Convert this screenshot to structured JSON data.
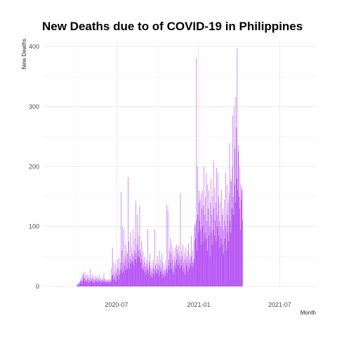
{
  "chart_data": {
    "type": "bar",
    "title": "New Deaths due to of COVID-19 in Philippines",
    "xlabel": "Month",
    "ylabel": "New Deaths",
    "x_start": "2020-02-01",
    "x_end": "2021-09-08",
    "xlim": [
      "2020-01-20",
      "2021-09-20"
    ],
    "ylim": [
      0,
      410
    ],
    "y_ticks": [
      0,
      100,
      200,
      300,
      400
    ],
    "x_ticks": [
      {
        "date": "2020-07-01",
        "label": "2020-07"
      },
      {
        "date": "2021-01-01",
        "label": "2021-01"
      },
      {
        "date": "2021-07-01",
        "label": "2021-07"
      }
    ],
    "bar_color": "#a020f0",
    "grid": true,
    "background": "#ffffff",
    "values_weekly_pattern": "daily",
    "values": [
      0,
      0,
      0,
      0,
      0,
      0,
      0,
      0,
      0,
      0,
      0,
      0,
      0,
      0,
      0,
      0,
      0,
      0,
      0,
      0,
      0,
      0,
      0,
      0,
      0,
      0,
      0,
      0,
      0,
      0,
      1,
      0,
      0,
      0,
      0,
      0,
      0,
      0,
      0,
      0,
      0,
      0,
      0,
      0,
      0,
      0,
      0,
      0,
      0,
      0,
      0,
      0,
      0,
      0,
      0,
      0,
      0,
      0,
      0,
      0,
      0,
      0,
      1,
      2,
      3,
      4,
      5,
      3,
      8,
      6,
      9,
      12,
      5,
      15,
      10,
      8,
      22,
      18,
      12,
      25,
      14,
      9,
      20,
      11,
      7,
      17,
      13,
      21,
      10,
      6,
      16,
      12,
      8,
      28,
      14,
      11,
      9,
      19,
      13,
      7,
      15,
      10,
      6,
      12,
      18,
      9,
      14,
      8,
      16,
      11,
      7,
      13,
      20,
      10,
      8,
      12,
      15,
      9,
      6,
      11,
      14,
      10,
      8,
      22,
      13,
      9,
      7,
      12,
      10,
      8,
      6,
      11,
      9,
      7,
      14,
      10,
      8,
      6,
      12,
      9,
      30,
      18,
      65,
      20,
      12,
      40,
      25,
      15,
      10,
      35,
      22,
      8,
      28,
      45,
      18,
      30,
      12,
      48,
      20,
      26,
      40,
      158,
      30,
      60,
      22,
      100,
      40,
      25,
      95,
      35,
      50,
      70,
      28,
      45,
      60,
      30,
      55,
      183,
      40,
      75,
      30,
      50,
      90,
      45,
      38,
      65,
      55,
      42,
      95,
      50,
      35,
      60,
      80,
      45,
      143,
      55,
      40,
      70,
      120,
      50,
      60,
      85,
      48,
      135,
      62,
      40,
      55,
      75,
      30,
      45,
      60,
      28,
      35,
      50,
      25,
      40,
      33,
      20,
      45,
      28,
      38,
      95,
      30,
      22,
      42,
      35,
      55,
      18,
      30,
      25,
      40,
      15,
      22,
      32,
      45,
      28,
      18,
      95,
      35,
      25,
      40,
      30,
      22,
      50,
      38,
      28,
      18,
      60,
      35,
      25,
      45,
      30,
      20,
      55,
      40,
      15,
      25,
      35,
      20,
      28,
      18,
      40,
      25,
      30,
      137,
      22,
      128,
      35,
      45,
      28,
      60,
      80,
      40,
      55,
      30,
      70,
      45,
      25,
      60,
      20,
      35,
      50,
      65,
      40,
      30,
      70,
      45,
      62,
      55,
      35,
      68,
      40,
      50,
      30,
      155,
      45,
      60,
      35,
      50,
      25,
      70,
      40,
      30,
      55,
      20,
      45,
      65,
      35,
      50,
      40,
      60,
      25,
      72,
      30,
      45,
      35,
      55,
      40,
      85,
      50,
      30,
      60,
      40,
      35,
      75,
      45,
      105,
      100,
      80,
      110,
      382,
      60,
      200,
      120,
      90,
      140,
      160,
      110,
      145,
      95,
      155,
      70,
      130,
      160,
      100,
      135,
      75,
      200,
      120,
      90,
      150,
      80,
      190,
      110,
      60,
      170,
      130,
      85,
      160,
      100,
      50,
      140,
      180,
      90,
      120,
      70,
      150,
      95,
      210,
      130,
      85,
      165,
      110,
      140,
      75,
      198,
      120,
      100,
      190,
      85,
      150,
      110,
      65,
      140,
      100,
      80,
      160,
      120,
      70,
      130,
      95,
      55,
      145,
      110,
      80,
      190,
      100,
      60,
      170,
      120,
      90,
      140,
      75,
      155,
      240,
      110,
      180,
      90,
      175,
      130,
      200,
      285,
      150,
      120,
      300,
      170,
      230,
      140,
      316,
      265,
      180,
      398,
      160,
      225,
      235,
      150,
      130,
      200,
      95,
      170,
      145,
      165,
      160,
      110
    ]
  }
}
